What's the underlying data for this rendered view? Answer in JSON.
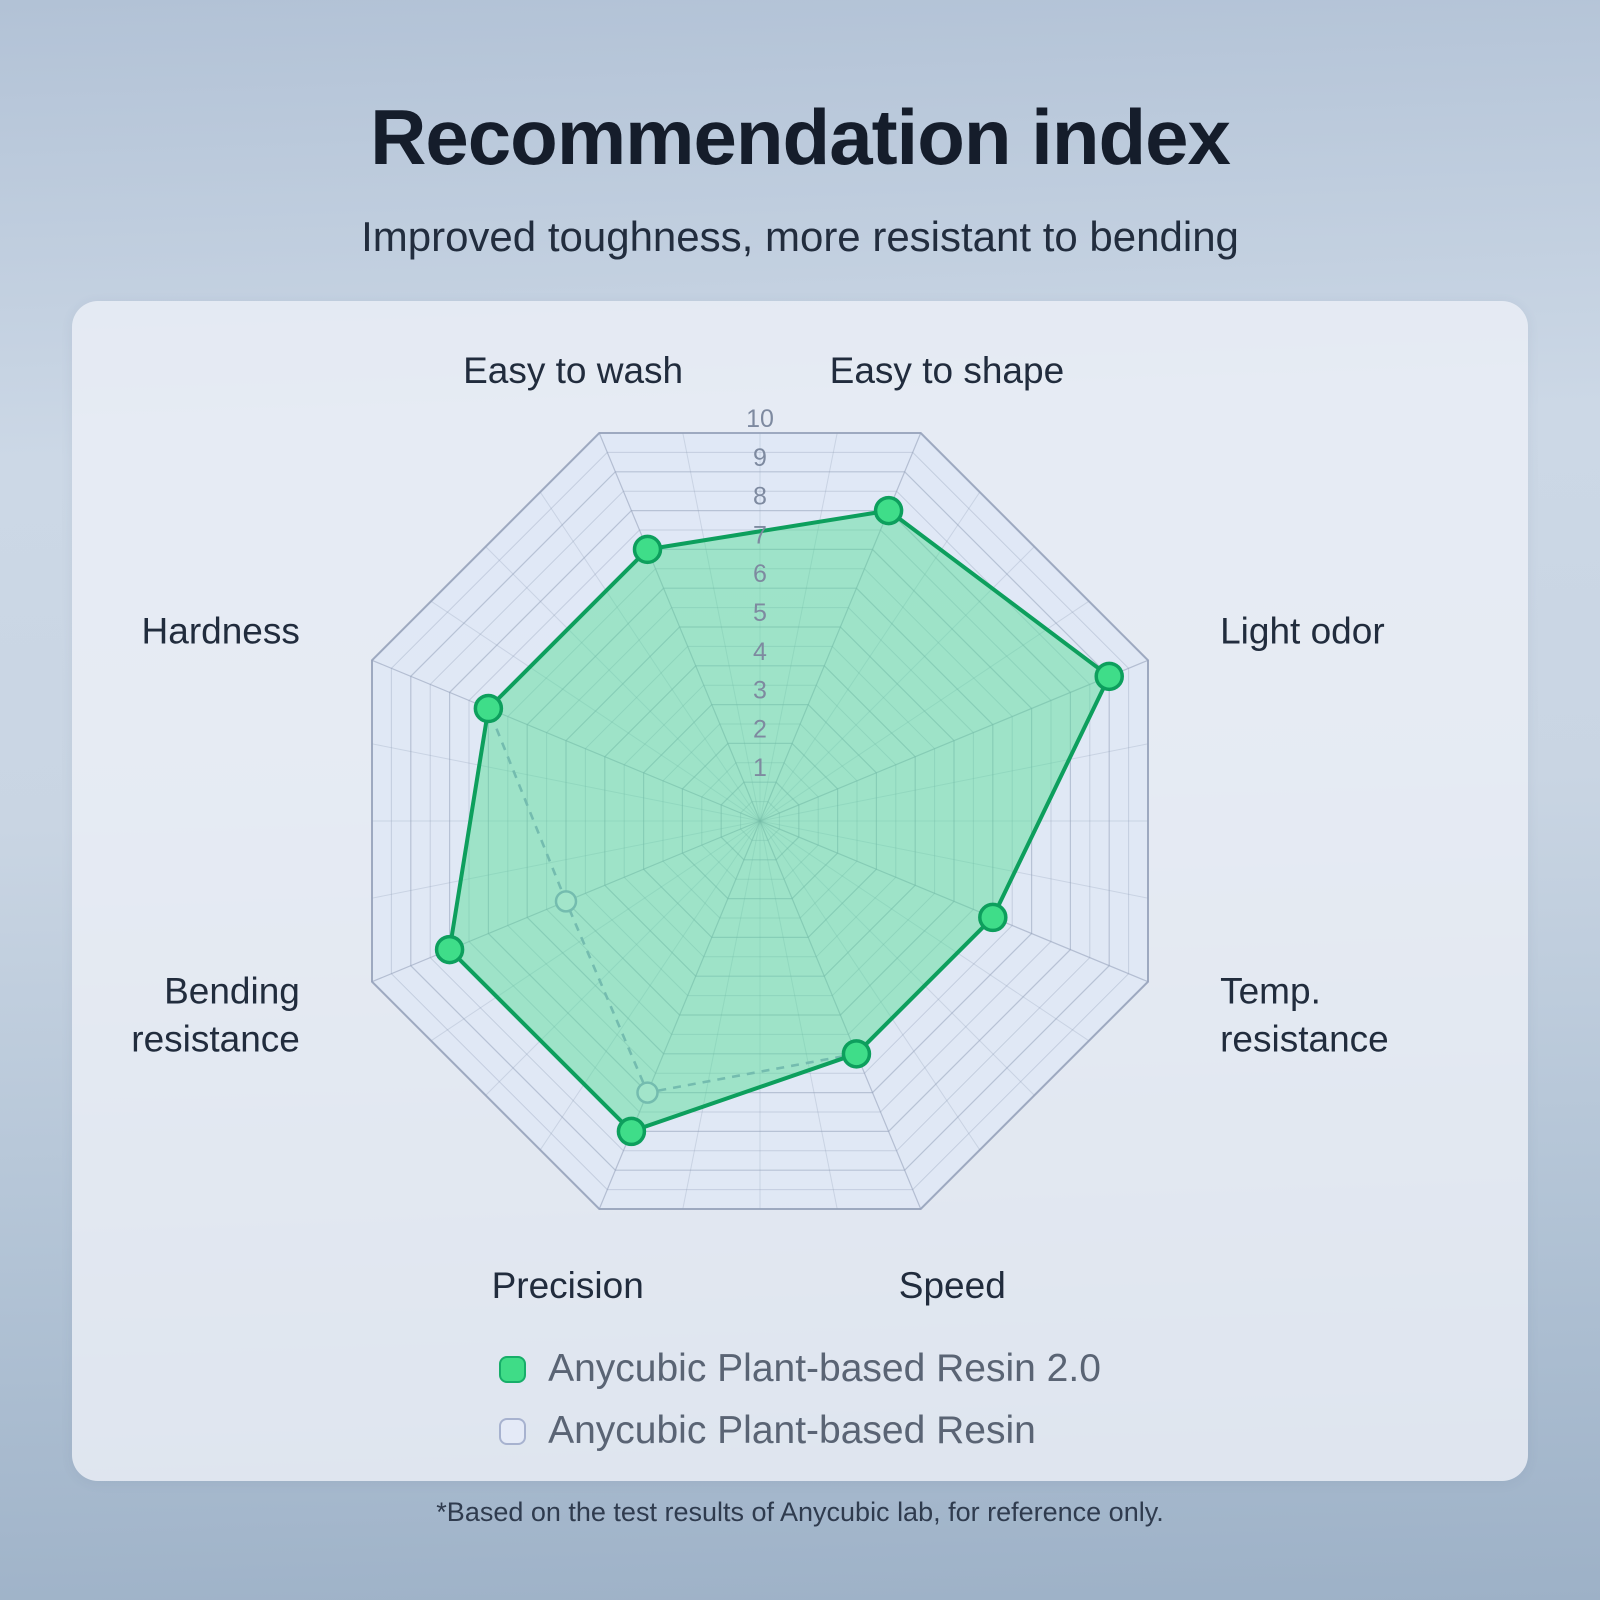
{
  "header": {
    "title": "Recommendation index",
    "subtitle": "Improved toughness, more resistant to bending"
  },
  "footnote": "*Based on the test results of Anycubic lab, for reference only.",
  "colors": {
    "accent_green": "#3fdc87",
    "accent_green_dark": "#0d9f5d",
    "dashed_lavender": "#94a1c6",
    "grid_line": "#96a2ba",
    "grid_fill": "#e0e7f5"
  },
  "chart_data": {
    "type": "radar",
    "title": "Recommendation index",
    "scale": {
      "min": 0,
      "max": 10,
      "tick_labels": [
        "10",
        "9",
        "8",
        "7",
        "6",
        "5",
        "4",
        "3",
        "2",
        "1"
      ]
    },
    "grid": "spiderweb, 8 axes, rings every 0.5 from 0 to 10",
    "legend_position": "bottom",
    "axes": [
      {
        "label": "Easy to shape",
        "lines": [
          "Easy to shape"
        ]
      },
      {
        "label": "Light odor",
        "lines": [
          "Light odor"
        ]
      },
      {
        "label": "Temp. resistance",
        "lines": [
          "Temp.",
          "resistance"
        ]
      },
      {
        "label": "Speed",
        "lines": [
          "Speed"
        ]
      },
      {
        "label": "Precision",
        "lines": [
          "Precision"
        ]
      },
      {
        "label": "Bending resistance",
        "lines": [
          "Bending",
          "resistance"
        ]
      },
      {
        "label": "Hardness",
        "lines": [
          "Hardness"
        ]
      },
      {
        "label": "Easy to wash",
        "lines": [
          "Easy to wash"
        ]
      }
    ],
    "series": [
      {
        "name": "Anycubic Plant-based Resin 2.0",
        "style": "solid",
        "color": "#0d9f5d",
        "fill": "#4ede92",
        "marker": "#3fdd89",
        "values": [
          8,
          9,
          6,
          6,
          8,
          8,
          7,
          7
        ]
      },
      {
        "name": "Anycubic Plant-based Resin",
        "style": "dashed",
        "color": "#94a1c6",
        "fill": "none",
        "marker": "#e7ecf8",
        "values": [
          8,
          9,
          6,
          6,
          7,
          5,
          7,
          7
        ]
      }
    ]
  }
}
